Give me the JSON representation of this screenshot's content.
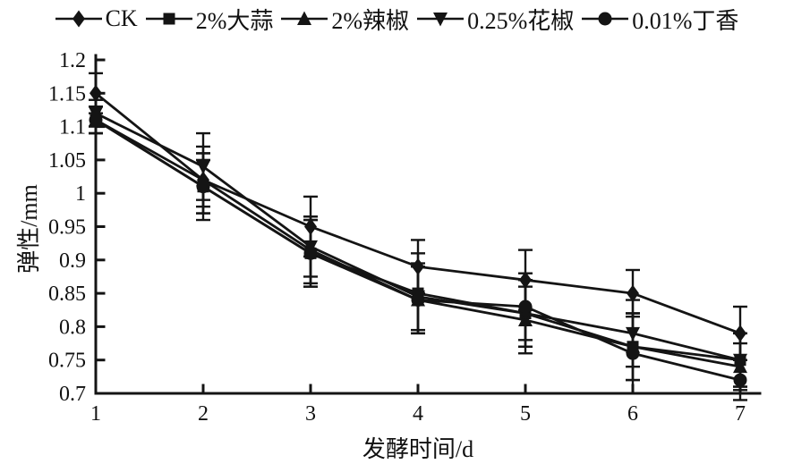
{
  "figure": {
    "background": "#ffffff",
    "ink_color": "#141414"
  },
  "chart_data": {
    "type": "line",
    "title": "",
    "xlabel": "发酵时间/d",
    "ylabel": "弹性/mm",
    "grid": false,
    "legend_position": "top",
    "error_bars": true,
    "x": [
      1,
      2,
      3,
      4,
      5,
      6,
      7
    ],
    "xlim": [
      1,
      7
    ],
    "ylim": [
      0.7,
      1.2
    ],
    "xticks": [
      "1",
      "2",
      "3",
      "4",
      "5",
      "6",
      "7"
    ],
    "yticks": [
      "1.2",
      "1.15",
      "1.1",
      "1.05",
      "1",
      "0.95",
      "0.9",
      "0.85",
      "0.8",
      "0.75",
      "0.7"
    ],
    "series": [
      {
        "name": "CK",
        "marker": "diamond",
        "values": [
          1.15,
          1.02,
          0.95,
          0.89,
          0.87,
          0.85,
          0.79
        ],
        "errors": [
          0.03,
          0.05,
          0.045,
          0.04,
          0.045,
          0.035,
          0.04
        ]
      },
      {
        "name": "2%大蒜",
        "marker": "square",
        "values": [
          1.11,
          1.01,
          0.91,
          0.85,
          0.82,
          0.77,
          0.75
        ],
        "errors": [
          0.02,
          0.05,
          0.05,
          0.06,
          0.05,
          0.05,
          0.04
        ]
      },
      {
        "name": "2%辣椒",
        "marker": "triangle-up",
        "values": [
          1.11,
          1.02,
          0.915,
          0.84,
          0.81,
          0.77,
          0.74
        ],
        "errors": [
          0.02,
          0.04,
          0.05,
          0.05,
          0.05,
          0.05,
          0.035
        ]
      },
      {
        "name": "0.25%花椒",
        "marker": "triangle-down",
        "values": [
          1.12,
          1.04,
          0.92,
          0.845,
          0.82,
          0.79,
          0.75
        ],
        "errors": [
          0.02,
          0.05,
          0.045,
          0.05,
          0.05,
          0.05,
          0.04
        ]
      },
      {
        "name": "0.01%丁香",
        "marker": "circle",
        "values": [
          1.11,
          1.01,
          0.91,
          0.84,
          0.83,
          0.76,
          0.72
        ],
        "errors": [
          0.02,
          0.04,
          0.05,
          0.05,
          0.05,
          0.06,
          0.03
        ]
      }
    ]
  }
}
